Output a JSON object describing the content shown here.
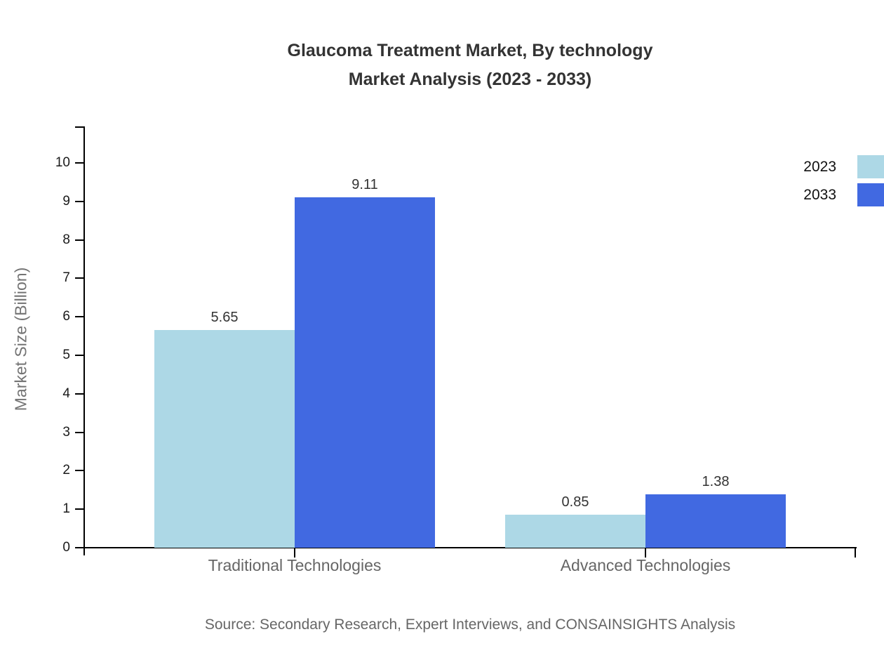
{
  "title": {
    "line1": "Glaucoma Treatment Market, By technology",
    "line2": "Market Analysis (2023 - 2033)"
  },
  "source": "Source: Secondary Research, Expert Interviews, and CONSAINSIGHTS Analysis",
  "legend": {
    "items": [
      {
        "label": "2023",
        "color": "#ADD8E6"
      },
      {
        "label": "2033",
        "color": "#4169E1"
      }
    ],
    "position": "top-right"
  },
  "colors": {
    "series_2023": "#ADD8E6",
    "series_2033": "#4169E1",
    "axis": "#000000",
    "title_text": "#333333",
    "muted_text": "#666666",
    "axis_title_text": "#737373"
  },
  "chart_data": {
    "type": "bar",
    "title": "Glaucoma Treatment Market, By technology Market Analysis (2023 - 2033)",
    "categories": [
      "Traditional Technologies",
      "Advanced Technologies"
    ],
    "series": [
      {
        "name": "2023",
        "color": "#ADD8E6",
        "values": [
          5.65,
          0.85
        ]
      },
      {
        "name": "2033",
        "color": "#4169E1",
        "values": [
          9.11,
          1.38
        ]
      }
    ],
    "xlabel": "",
    "ylabel": "Market Size (Billion)",
    "ylim": [
      0,
      10
    ],
    "yticks": [
      0,
      1,
      2,
      3,
      4,
      5,
      6,
      7,
      8,
      9,
      10
    ],
    "grid": false,
    "legend_position": "top-right",
    "value_labels": true
  }
}
